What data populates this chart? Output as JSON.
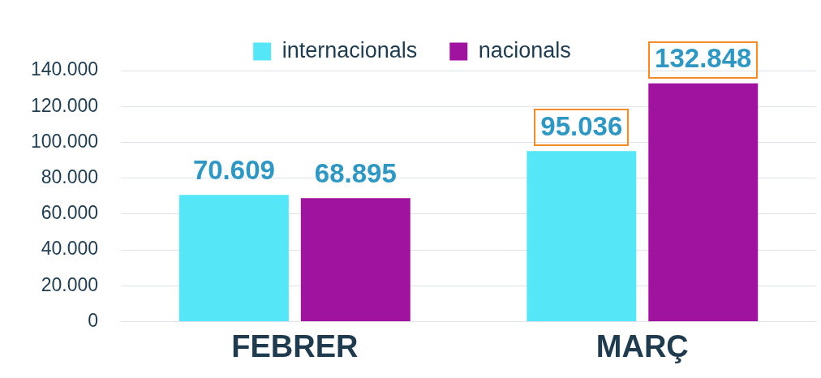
{
  "chart_data": {
    "type": "bar",
    "categories": [
      "FEBRER",
      "MARÇ"
    ],
    "series": [
      {
        "name": "internacionals",
        "color": "#55e6f8",
        "values": [
          70609,
          95036
        ],
        "value_labels": [
          "70.609",
          "95.036"
        ]
      },
      {
        "name": "nacionals",
        "color": "#a0139f",
        "values": [
          68895,
          132848
        ],
        "value_labels": [
          "68.895",
          "132.848"
        ]
      }
    ],
    "ylim": [
      0,
      140000
    ],
    "yticks": [
      {
        "value": 0,
        "label": "0"
      },
      {
        "value": 20000,
        "label": "20.000"
      },
      {
        "value": 40000,
        "label": "40.000"
      },
      {
        "value": 60000,
        "label": "60.000"
      },
      {
        "value": 80000,
        "label": "80.000"
      },
      {
        "value": 100000,
        "label": "100.000"
      },
      {
        "value": 120000,
        "label": "120.000"
      },
      {
        "value": 140000,
        "label": "140.000"
      }
    ],
    "grid": "y",
    "legend": "top"
  }
}
